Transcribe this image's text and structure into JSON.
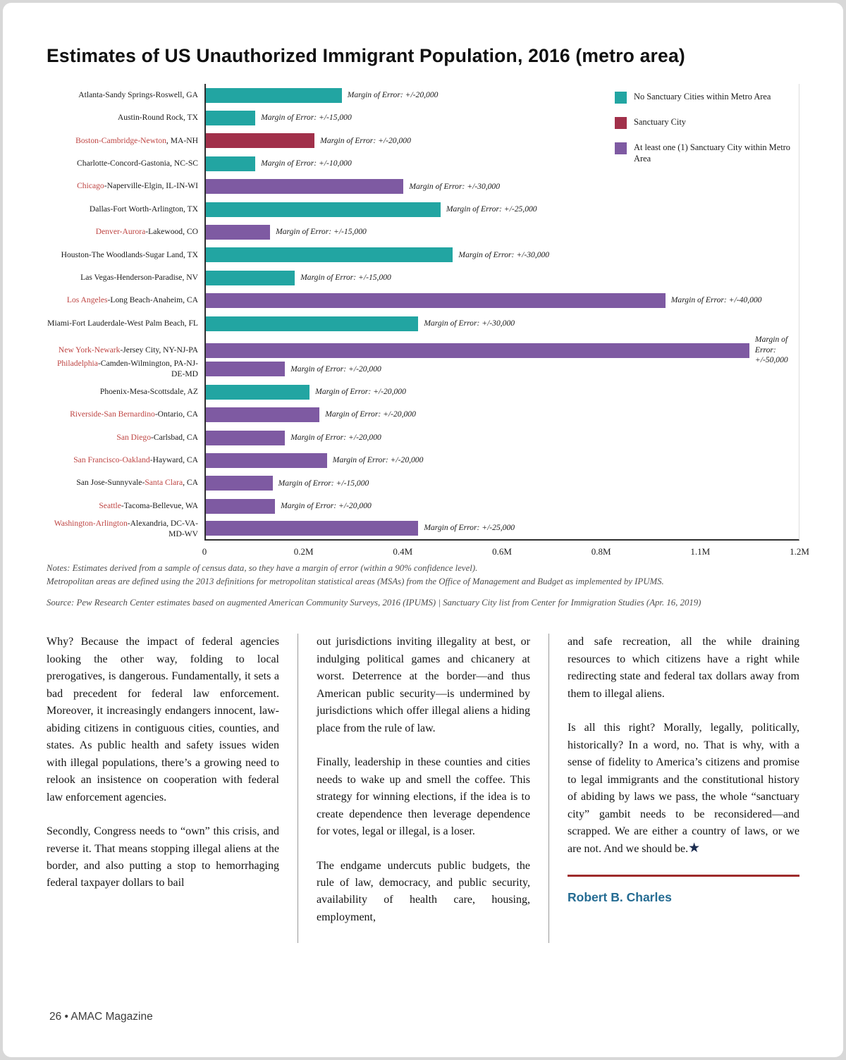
{
  "page": {
    "footer": "26 • AMAC Magazine"
  },
  "chart": {
    "title": "Estimates of US Unauthorized Immigrant Population, 2016 (metro area)",
    "legend": [
      {
        "label": "No Sanctuary Cities within Metro Area",
        "color": "#22A5A2"
      },
      {
        "label": "Sanctuary City",
        "color": "#A1304A"
      },
      {
        "label": "At least one (1) Sanctuary City within Metro Area",
        "color": "#7E5AA2"
      }
    ],
    "notes_line1": "Notes: Estimates derived from a sample of census data, so they have a margin of error (within a 90% confidence level).",
    "notes_line2": "Metropolitan areas are defined using the 2013 definitions for metropolitan statistical areas (MSAs) from the Office of Management and Budget as implemented by IPUMS.",
    "source": "Source: Pew Research Center estimates based on augmented American Community Surveys, 2016 (IPUMS)  |  Sanctuary City list from Center for Immigration Studies (Apr. 16, 2019)"
  },
  "chart_data": {
    "type": "bar",
    "orientation": "horizontal",
    "title": "Estimates of US Unauthorized Immigrant Population, 2016 (metro area)",
    "xlabel": "",
    "ylabel": "",
    "xlim": [
      0,
      1.2
    ],
    "unit": "millions of people",
    "x_ticks": [
      "0",
      "0.2M",
      "0.4M",
      "0.6M",
      "0.8M",
      "1.1M",
      "1.2M"
    ],
    "grid": false,
    "legend_position": "top-right-inside",
    "category_colors": {
      "no_sanctuary": "#22A5A2",
      "sanctuary_city": "#A1304A",
      "at_least_one": "#7E5AA2"
    },
    "rows": [
      {
        "label_parts": [
          {
            "t": "Atlanta-Sandy Springs-Roswell, GA",
            "red": false
          }
        ],
        "value": 0.275,
        "category": "no_sanctuary",
        "moe": "Margin of Error: +/-20,000"
      },
      {
        "label_parts": [
          {
            "t": "Austin-Round Rock, TX",
            "red": false
          }
        ],
        "value": 0.1,
        "category": "no_sanctuary",
        "moe": "Margin of Error: +/-15,000"
      },
      {
        "label_parts": [
          {
            "t": "Boston-Cambridge-Newton",
            "red": true
          },
          {
            "t": ", MA-NH",
            "red": false
          }
        ],
        "value": 0.22,
        "category": "sanctuary_city",
        "moe": "Margin of Error: +/-20,000"
      },
      {
        "label_parts": [
          {
            "t": "Charlotte-Concord-Gastonia, NC-SC",
            "red": false
          }
        ],
        "value": 0.1,
        "category": "no_sanctuary",
        "moe": "Margin of Error: +/-10,000"
      },
      {
        "label_parts": [
          {
            "t": "Chicago",
            "red": true
          },
          {
            "t": "-Naperville-Elgin, IL-IN-WI",
            "red": false
          }
        ],
        "value": 0.4,
        "category": "at_least_one",
        "moe": "Margin of Error: +/-30,000"
      },
      {
        "label_parts": [
          {
            "t": "Dallas-Fort Worth-Arlington, TX",
            "red": false
          }
        ],
        "value": 0.475,
        "category": "no_sanctuary",
        "moe": "Margin of Error: +/-25,000"
      },
      {
        "label_parts": [
          {
            "t": "Denver-Aurora",
            "red": true
          },
          {
            "t": "-Lakewood, CO",
            "red": false
          }
        ],
        "value": 0.13,
        "category": "at_least_one",
        "moe": "Margin of Error: +/-15,000"
      },
      {
        "label_parts": [
          {
            "t": "Houston-The Woodlands-Sugar Land, TX",
            "red": false
          }
        ],
        "value": 0.5,
        "category": "no_sanctuary",
        "moe": "Margin of Error: +/-30,000"
      },
      {
        "label_parts": [
          {
            "t": "Las Vegas-Henderson-Paradise, NV",
            "red": false
          }
        ],
        "value": 0.18,
        "category": "no_sanctuary",
        "moe": "Margin of Error: +/-15,000"
      },
      {
        "label_parts": [
          {
            "t": "Los Angeles",
            "red": true
          },
          {
            "t": "-Long Beach-Anaheim, CA",
            "red": false
          }
        ],
        "value": 0.93,
        "category": "at_least_one",
        "moe": "Margin of Error: +/-40,000"
      },
      {
        "label_parts": [
          {
            "t": "Miami-Fort Lauderdale-West Palm Beach, FL",
            "red": false
          }
        ],
        "value": 0.43,
        "category": "no_sanctuary",
        "moe": "Margin of Error: +/-30,000"
      },
      {
        "label_parts": [
          {
            "t": "New York-Newark",
            "red": true
          },
          {
            "t": "-Jersey City, NY-NJ-PA",
            "red": false
          }
        ],
        "value": 1.1,
        "category": "at_least_one",
        "moe": "Margin of Error: +/-50,000"
      },
      {
        "label_parts": [
          {
            "t": "Philadelphia",
            "red": true
          },
          {
            "t": "-Camden-Wilmington, PA-NJ-DE-MD",
            "red": false
          }
        ],
        "value": 0.16,
        "category": "at_least_one",
        "moe": "Margin of Error: +/-20,000"
      },
      {
        "label_parts": [
          {
            "t": "Phoenix-Mesa-Scottsdale, AZ",
            "red": false
          }
        ],
        "value": 0.21,
        "category": "no_sanctuary",
        "moe": "Margin of Error: +/-20,000"
      },
      {
        "label_parts": [
          {
            "t": "Riverside-San Bernardino",
            "red": true
          },
          {
            "t": "-Ontario, CA",
            "red": false
          }
        ],
        "value": 0.23,
        "category": "at_least_one",
        "moe": "Margin of Error: +/-20,000"
      },
      {
        "label_parts": [
          {
            "t": "San Diego",
            "red": true
          },
          {
            "t": "-Carlsbad, CA",
            "red": false
          }
        ],
        "value": 0.16,
        "category": "at_least_one",
        "moe": "Margin of Error: +/-20,000"
      },
      {
        "label_parts": [
          {
            "t": "San Francisco-Oakland",
            "red": true
          },
          {
            "t": "-Hayward, CA",
            "red": false
          }
        ],
        "value": 0.245,
        "category": "at_least_one",
        "moe": "Margin of Error: +/-20,000"
      },
      {
        "label_parts": [
          {
            "t": "San Jose-Sunnyvale-",
            "red": false
          },
          {
            "t": "Santa Clara",
            "red": true
          },
          {
            "t": ", CA",
            "red": false
          }
        ],
        "value": 0.135,
        "category": "at_least_one",
        "moe": "Margin of Error: +/-15,000"
      },
      {
        "label_parts": [
          {
            "t": "Seattle",
            "red": true
          },
          {
            "t": "-Tacoma-Bellevue, WA",
            "red": false
          }
        ],
        "value": 0.14,
        "category": "at_least_one",
        "moe": "Margin of Error: +/-20,000"
      },
      {
        "label_parts": [
          {
            "t": "Washington-Arlington",
            "red": true
          },
          {
            "t": "-Alexandria, DC-VA-MD-WV",
            "red": false
          }
        ],
        "value": 0.43,
        "category": "at_least_one",
        "moe": "Margin of Error: +/-25,000"
      }
    ]
  },
  "article": {
    "columns": [
      {
        "paragraphs": [
          "Why? Because the impact of federal agencies looking the other way, folding to local prerogatives, is dangerous. Fundamentally, it sets a bad precedent for federal law enforcement. Moreover, it increasingly endangers innocent, law-abiding citizens in contiguous cities, counties, and states. As public health and safety issues widen with illegal populations, there’s a growing need to relook an insistence on cooperation with federal law enforcement agencies.",
          "Secondly, Congress needs to “own” this crisis, and reverse it. That means stopping illegal aliens at the border, and also putting a stop to hemorrhaging federal taxpayer dollars to bail"
        ]
      },
      {
        "paragraphs": [
          "out jurisdictions inviting illegality at best, or indulging political games and chicanery at worst. Deterrence at the border—and thus American public security—is undermined by jurisdictions which offer illegal aliens a hiding place from the rule of law.",
          "Finally, leadership in these counties and cities needs to wake up and smell the coffee. This strategy for winning elections, if the idea is to create dependence then leverage dependence for votes, legal or illegal, is a loser.",
          "The endgame undercuts public budgets, the rule of law, democracy, and public security, availability of health care, housing, employment,"
        ]
      },
      {
        "paragraphs": [
          "and safe recreation, all the while draining resources to which citizens have a right while redirecting state and federal tax dollars away from them to illegal aliens.",
          "Is all this right? Morally, legally, politically, historically? In a word, no. That is why, with a sense of fidelity to America’s citizens and promise to legal immigrants and the constitutional history of abiding by laws we pass, the whole “sanctuary city” gambit needs to be reconsidered—and scrapped. We are either a country of laws, or we are not. And we should be.★"
        ]
      }
    ],
    "byline": "Robert B. Charles"
  }
}
